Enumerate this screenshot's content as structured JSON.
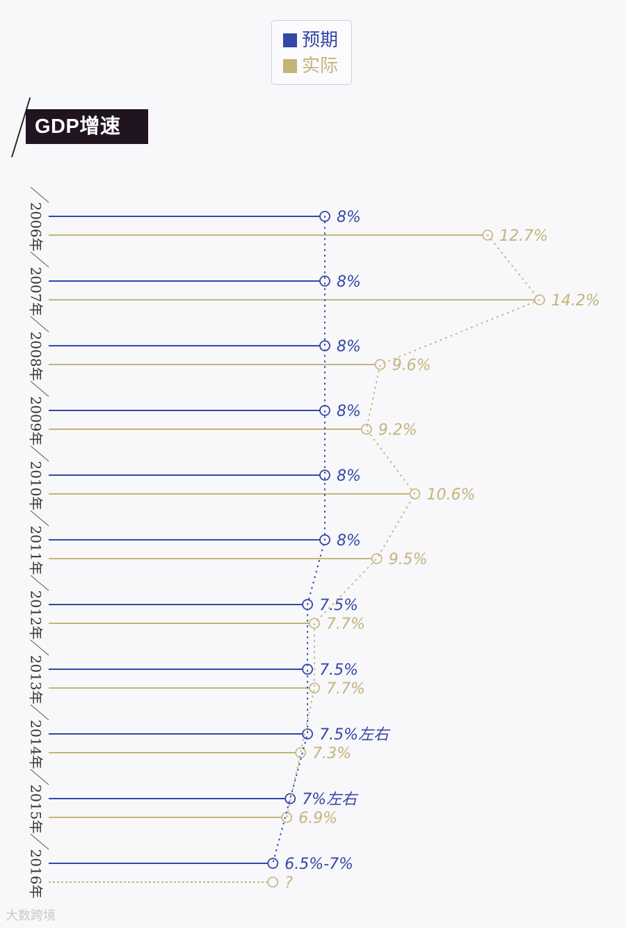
{
  "legend": {
    "expected_label": "预期",
    "actual_label": "实际"
  },
  "title": "GDP增速",
  "colors": {
    "expected": "#3347a6",
    "actual": "#c2b57a",
    "background": "#f8f7fa"
  },
  "watermark": "大数跨境",
  "chart_data": {
    "type": "dot-line",
    "title": "GDP增速",
    "legend": [
      "预期",
      "实际"
    ],
    "categories": [
      "2006年",
      "2007年",
      "2008年",
      "2009年",
      "2010年",
      "2011年",
      "2012年",
      "2013年",
      "2014年",
      "2015年",
      "2016年"
    ],
    "series": [
      {
        "name": "预期",
        "values": [
          8,
          8,
          8,
          8,
          8,
          8,
          7.5,
          7.5,
          7.5,
          7,
          6.5
        ],
        "labels": [
          "8%",
          "8%",
          "8%",
          "8%",
          "8%",
          "8%",
          "7.5%",
          "7.5%",
          "7.5%左右",
          "7%左右",
          "6.5%-7%"
        ]
      },
      {
        "name": "实际",
        "values": [
          12.7,
          14.2,
          9.6,
          9.2,
          10.6,
          9.5,
          7.7,
          7.7,
          7.3,
          6.9,
          null
        ],
        "labels": [
          "12.7%",
          "14.2%",
          "9.6%",
          "9.2%",
          "10.6%",
          "9.5%",
          "7.7%",
          "7.7%",
          "7.3%",
          "6.9%",
          "?"
        ]
      }
    ]
  }
}
